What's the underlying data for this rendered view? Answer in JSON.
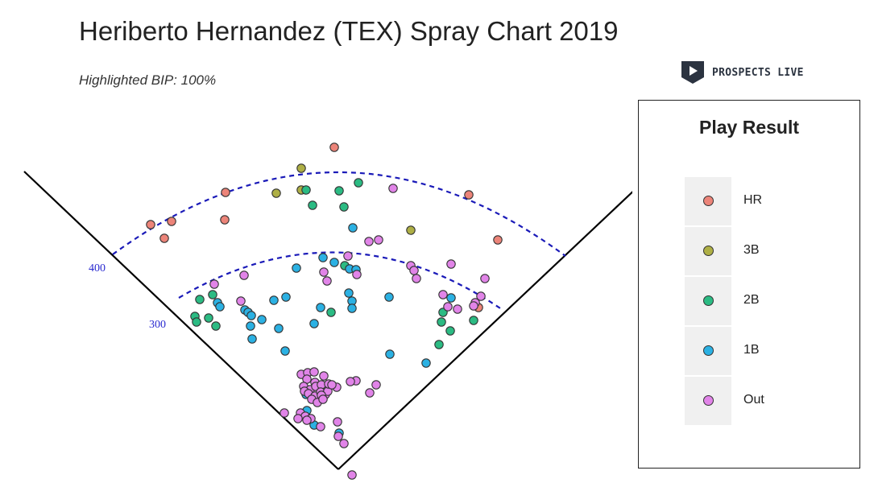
{
  "title": "Heriberto Hernandez (TEX) Spray Chart 2019",
  "subtitle": "Highlighted BIP: 100%",
  "brand": {
    "name": "PROSPECTS LIVE",
    "icon": "play-shield-icon"
  },
  "chart_data": {
    "type": "scatter",
    "title": "Heriberto Hernandez (TEX) Spray Chart 2019",
    "subtitle": "Highlighted BIP: 100%",
    "legend": {
      "title": "Play Result",
      "placement": "right",
      "entries": [
        {
          "label": "HR",
          "color": "#ec8479"
        },
        {
          "label": "3B",
          "color": "#aeaf45"
        },
        {
          "label": "2B",
          "color": "#2bbb83"
        },
        {
          "label": "1B",
          "color": "#2bb1e3"
        },
        {
          "label": "Out",
          "color": "#e184e8"
        }
      ]
    },
    "distance_arcs": [
      {
        "label": "300",
        "color": "#1a1ab8"
      },
      {
        "label": "400",
        "color": "#1a1ab8"
      }
    ],
    "grid": false,
    "points": {
      "HR": [
        [
          415,
          183
        ],
        [
          187,
          279
        ],
        [
          213,
          275
        ],
        [
          204,
          296
        ],
        [
          280,
          239
        ],
        [
          279,
          273
        ],
        [
          582,
          242
        ],
        [
          618,
          298
        ],
        [
          594,
          382
        ]
      ],
      "3B": [
        [
          374,
          209
        ],
        [
          343,
          240
        ],
        [
          374,
          236
        ],
        [
          510,
          286
        ]
      ],
      "2B": [
        [
          380,
          236
        ],
        [
          421,
          237
        ],
        [
          445,
          227
        ],
        [
          388,
          255
        ],
        [
          427,
          257
        ],
        [
          248,
          372
        ],
        [
          264,
          366
        ],
        [
          242,
          393
        ],
        [
          259,
          395
        ],
        [
          244,
          400
        ],
        [
          268,
          405
        ],
        [
          428,
          330
        ],
        [
          411,
          388
        ],
        [
          548,
          400
        ],
        [
          559,
          411
        ],
        [
          588,
          398
        ],
        [
          545,
          428
        ],
        [
          550,
          388
        ]
      ],
      "1B": [
        [
          438,
          283
        ],
        [
          401,
          320
        ],
        [
          415,
          326
        ],
        [
          368,
          333
        ],
        [
          434,
          334
        ],
        [
          442,
          335
        ],
        [
          270,
          376
        ],
        [
          273,
          381
        ],
        [
          304,
          385
        ],
        [
          308,
          388
        ],
        [
          312,
          392
        ],
        [
          325,
          397
        ],
        [
          311,
          405
        ],
        [
          346,
          408
        ],
        [
          313,
          421
        ],
        [
          340,
          373
        ],
        [
          355,
          369
        ],
        [
          433,
          364
        ],
        [
          437,
          374
        ],
        [
          398,
          382
        ],
        [
          437,
          383
        ],
        [
          390,
          402
        ],
        [
          483,
          369
        ],
        [
          560,
          370
        ],
        [
          354,
          436
        ],
        [
          484,
          440
        ],
        [
          529,
          451
        ],
        [
          380,
          490
        ],
        [
          381,
          510
        ],
        [
          390,
          528
        ],
        [
          421,
          538
        ]
      ],
      "Out": [
        [
          488,
          234
        ],
        [
          458,
          300
        ],
        [
          470,
          298
        ],
        [
          432,
          318
        ],
        [
          402,
          338
        ],
        [
          406,
          349
        ],
        [
          443,
          341
        ],
        [
          510,
          330
        ],
        [
          514,
          336
        ],
        [
          517,
          346
        ],
        [
          560,
          328
        ],
        [
          602,
          346
        ],
        [
          266,
          353
        ],
        [
          303,
          342
        ],
        [
          299,
          374
        ],
        [
          550,
          366
        ],
        [
          556,
          381
        ],
        [
          568,
          384
        ],
        [
          590,
          376
        ],
        [
          597,
          368
        ],
        [
          588,
          380
        ],
        [
          374,
          465
        ],
        [
          382,
          463
        ],
        [
          390,
          462
        ],
        [
          402,
          467
        ],
        [
          381,
          471
        ],
        [
          391,
          475
        ],
        [
          377,
          480
        ],
        [
          385,
          484
        ],
        [
          392,
          480
        ],
        [
          399,
          478
        ],
        [
          418,
          481
        ],
        [
          442,
          473
        ],
        [
          467,
          478
        ],
        [
          459,
          488
        ],
        [
          378,
          486
        ],
        [
          383,
          489
        ],
        [
          391,
          492
        ],
        [
          398,
          487
        ],
        [
          404,
          490
        ],
        [
          407,
          486
        ],
        [
          387,
          496
        ],
        [
          394,
          500
        ],
        [
          399,
          491
        ],
        [
          401,
          496
        ],
        [
          353,
          513
        ],
        [
          373,
          513
        ],
        [
          379,
          517
        ],
        [
          386,
          520
        ],
        [
          370,
          520
        ],
        [
          381,
          522
        ],
        [
          398,
          530
        ],
        [
          419,
          524
        ],
        [
          420,
          542
        ],
        [
          427,
          551
        ],
        [
          437,
          590
        ],
        [
          435,
          474
        ],
        [
          408,
          477
        ],
        [
          412,
          478
        ]
      ]
    }
  }
}
